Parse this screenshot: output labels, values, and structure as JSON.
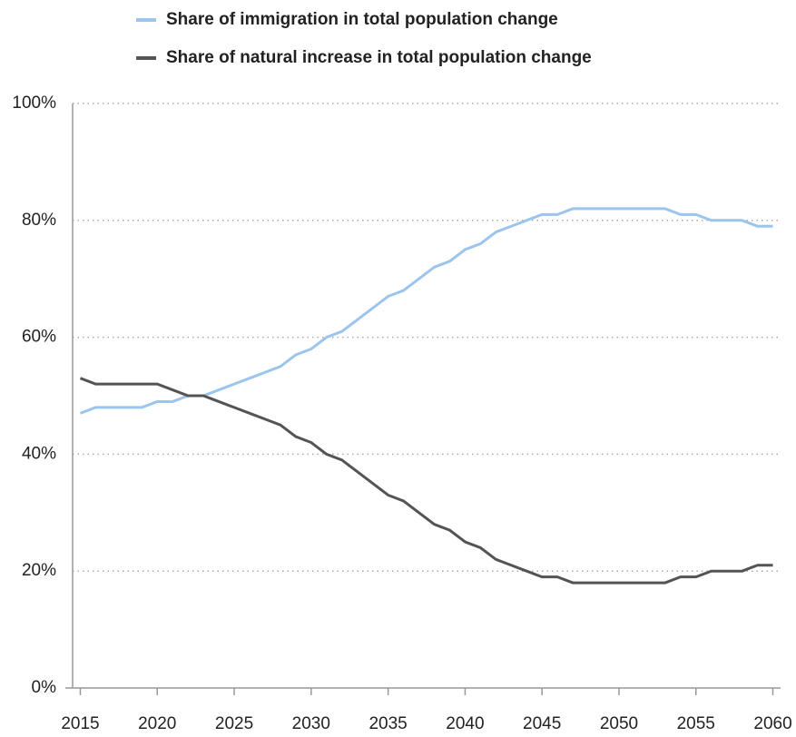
{
  "chart_data": {
    "type": "line",
    "x": [
      2015,
      2016,
      2017,
      2018,
      2019,
      2020,
      2021,
      2022,
      2023,
      2024,
      2025,
      2026,
      2027,
      2028,
      2029,
      2030,
      2031,
      2032,
      2033,
      2034,
      2035,
      2036,
      2037,
      2038,
      2039,
      2040,
      2041,
      2042,
      2043,
      2044,
      2045,
      2046,
      2047,
      2048,
      2049,
      2050,
      2051,
      2052,
      2053,
      2054,
      2055,
      2056,
      2057,
      2058,
      2059,
      2060
    ],
    "series": [
      {
        "name": "Share of immigration in total population change",
        "color": "#9cc5ee",
        "values": [
          47,
          48,
          48,
          48,
          48,
          49,
          49,
          50,
          50,
          51,
          52,
          53,
          54,
          55,
          57,
          58,
          60,
          61,
          63,
          65,
          67,
          68,
          70,
          72,
          73,
          75,
          76,
          78,
          79,
          80,
          81,
          81,
          82,
          82,
          82,
          82,
          82,
          82,
          82,
          81,
          81,
          80,
          80,
          80,
          79,
          79
        ]
      },
      {
        "name": "Share of natural increase in total population change",
        "color": "#545454",
        "values": [
          53,
          52,
          52,
          52,
          52,
          52,
          51,
          50,
          50,
          49,
          48,
          47,
          46,
          45,
          43,
          42,
          40,
          39,
          37,
          35,
          33,
          32,
          30,
          28,
          27,
          25,
          24,
          22,
          21,
          20,
          19,
          19,
          18,
          18,
          18,
          18,
          18,
          18,
          18,
          19,
          19,
          20,
          20,
          20,
          21,
          21
        ]
      }
    ],
    "xlim": [
      2014.5,
      2060.5
    ],
    "xticks": [
      2015,
      2020,
      2025,
      2030,
      2035,
      2040,
      2045,
      2050,
      2055,
      2060
    ],
    "ylim": [
      0,
      100
    ],
    "yticks": [
      {
        "value": 0,
        "label": "0%"
      },
      {
        "value": 20,
        "label": "20%"
      },
      {
        "value": 40,
        "label": "40%"
      },
      {
        "value": 60,
        "label": "60%"
      },
      {
        "value": 80,
        "label": "80%"
      },
      {
        "value": 100,
        "label": "100%"
      }
    ],
    "grid": true,
    "legend": "top"
  }
}
